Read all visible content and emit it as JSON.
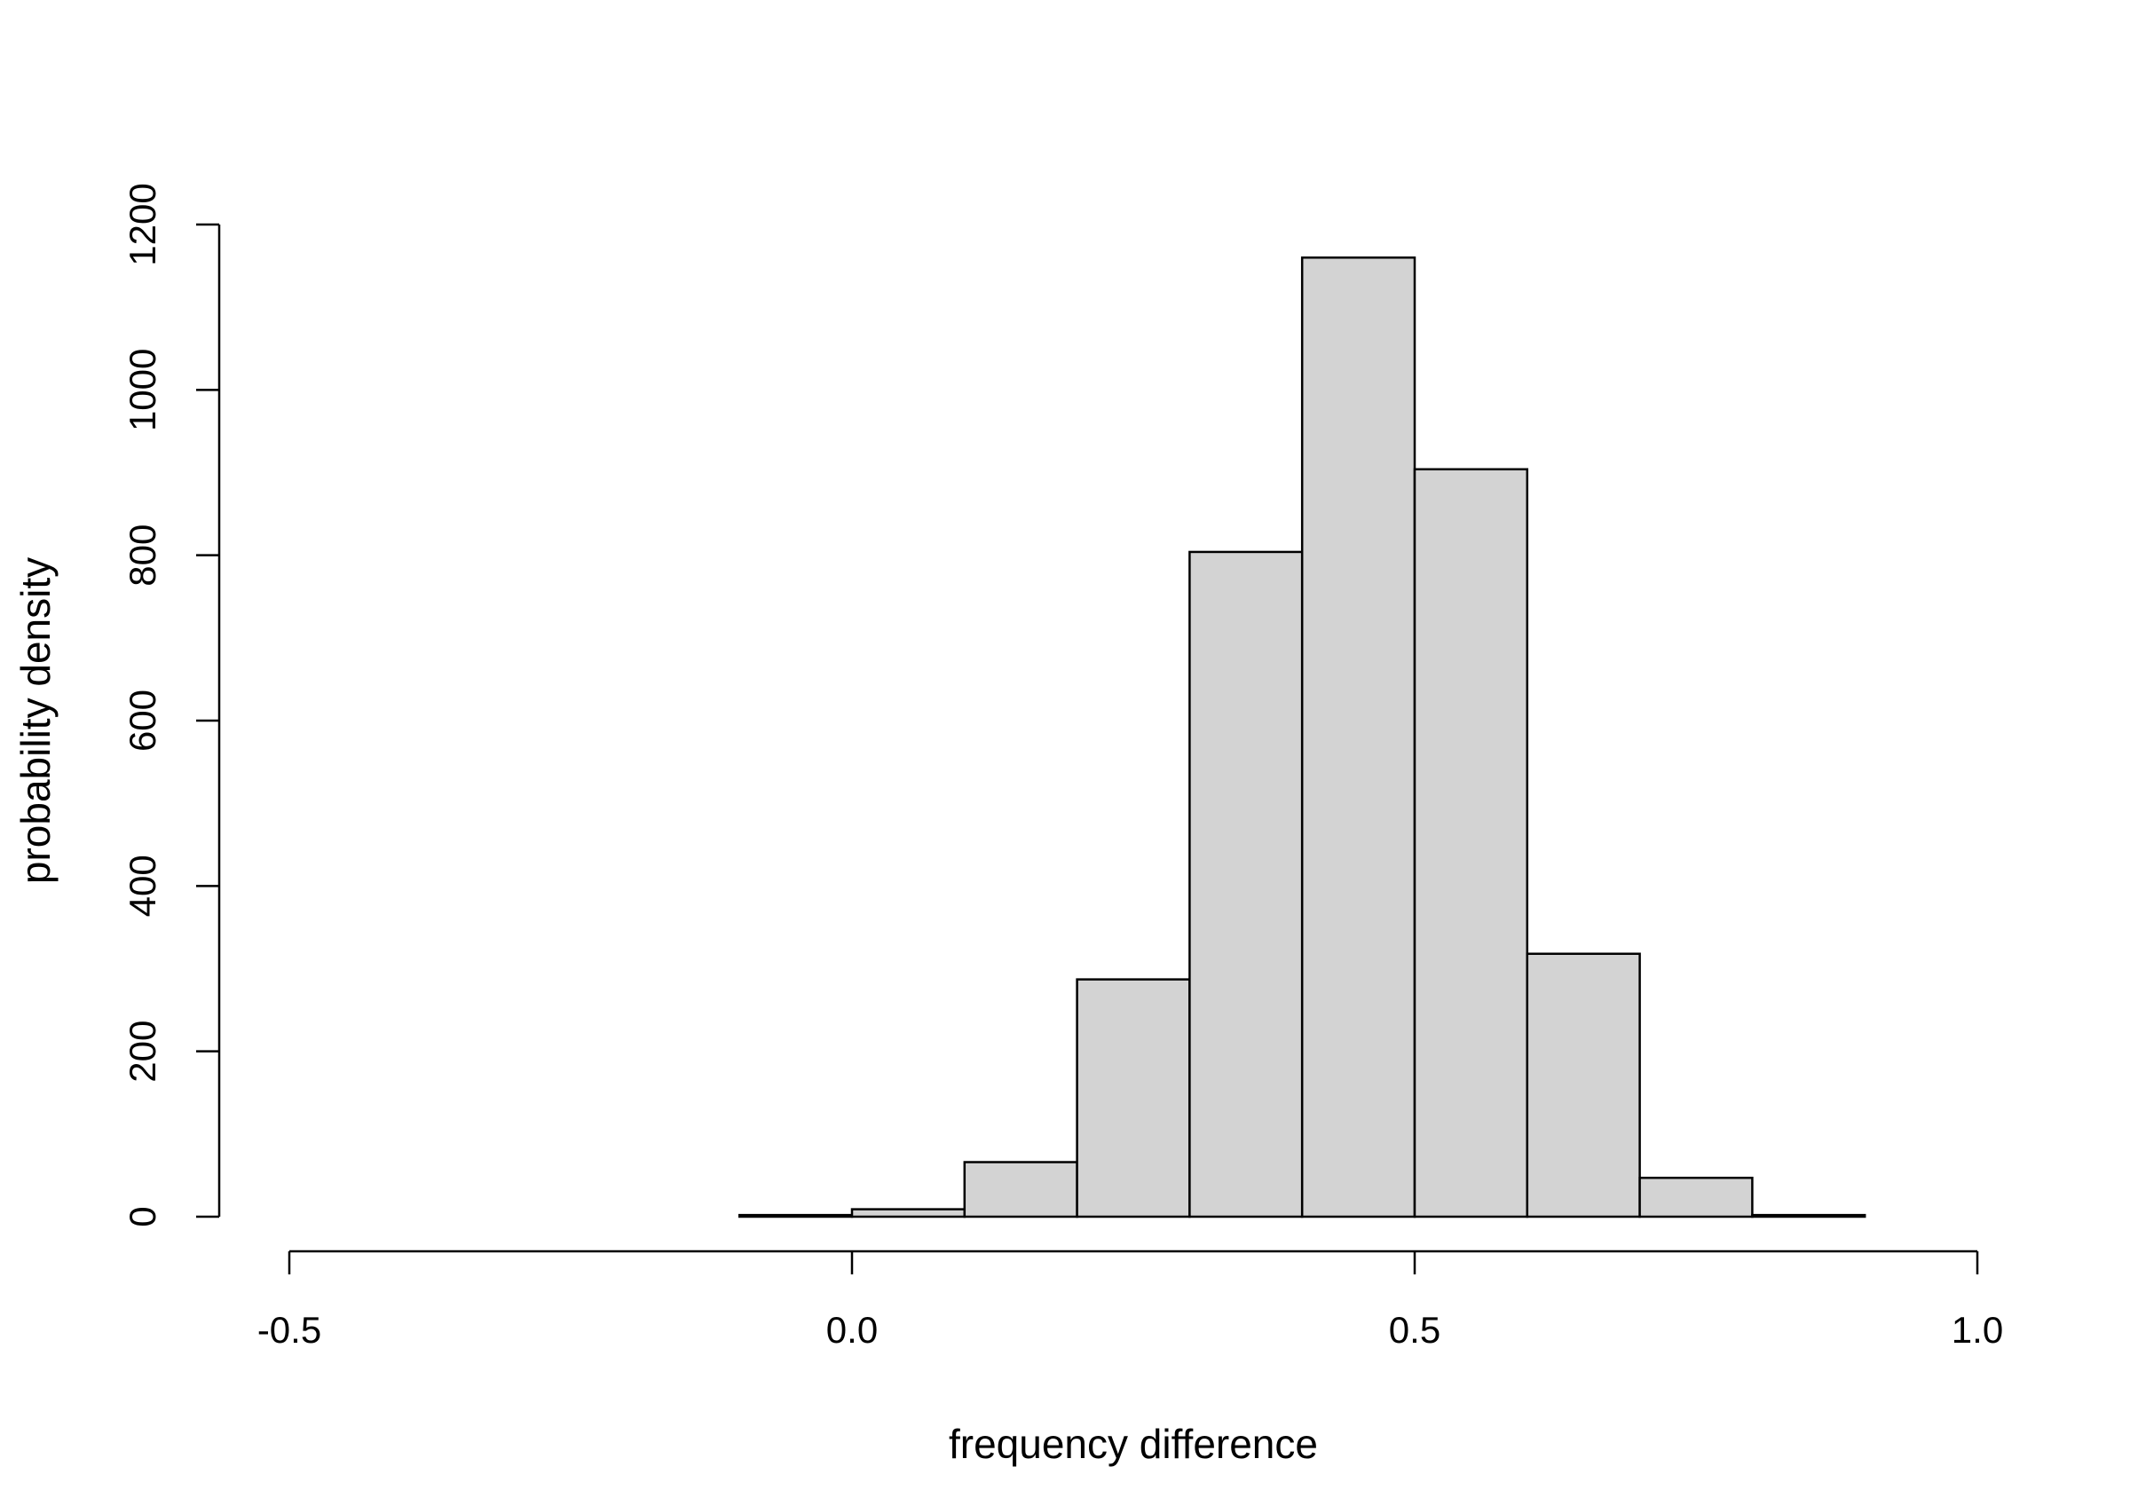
{
  "chart_data": {
    "type": "bar",
    "subtype": "histogram",
    "title": "",
    "xlabel": "frequency difference",
    "ylabel": "probability density",
    "bins": [
      {
        "start": -0.1,
        "end": 0.0,
        "value": 2
      },
      {
        "start": 0.0,
        "end": 0.1,
        "value": 9
      },
      {
        "start": 0.1,
        "end": 0.2,
        "value": 66
      },
      {
        "start": 0.2,
        "end": 0.3,
        "value": 287
      },
      {
        "start": 0.3,
        "end": 0.4,
        "value": 804
      },
      {
        "start": 0.4,
        "end": 0.5,
        "value": 1160
      },
      {
        "start": 0.5,
        "end": 0.6,
        "value": 904
      },
      {
        "start": 0.6,
        "end": 0.7,
        "value": 318
      },
      {
        "start": 0.7,
        "end": 0.8,
        "value": 47
      },
      {
        "start": 0.8,
        "end": 0.9,
        "value": 2
      }
    ],
    "xlim": [
      -0.5,
      1.0
    ],
    "ylim": [
      0,
      1200
    ],
    "x_ticks": [
      -0.5,
      0.0,
      0.5,
      1.0
    ],
    "x_tick_labels": [
      "-0.5",
      "0.0",
      "0.5",
      "1.0"
    ],
    "y_ticks": [
      0,
      200,
      400,
      600,
      800,
      1000,
      1200
    ],
    "y_tick_labels": [
      "0",
      "200",
      "400",
      "600",
      "800",
      "1000",
      "1200"
    ],
    "bar_fill": "#d3d3d3",
    "bar_stroke": "#000000",
    "grid": false,
    "legend": "none"
  }
}
